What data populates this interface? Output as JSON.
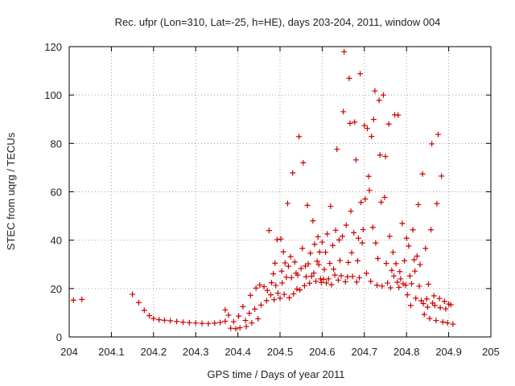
{
  "chart_data": {
    "type": "scatter",
    "title": "Rec. ufpr (Lon=310, Lat=-25, h=HE), days 203-204, 2011, window 004",
    "xlabel": "GPS time / Days of year 2011",
    "ylabel": "STEC from uqrg / TECUs",
    "xlim": [
      204,
      205
    ],
    "ylim": [
      0,
      120
    ],
    "xticks": [
      204,
      204.1,
      204.2,
      204.3,
      204.4,
      204.5,
      204.6,
      204.7,
      204.8,
      204.9,
      205
    ],
    "xtick_labels": [
      "204",
      "204.1",
      "204.2",
      "204.3",
      "204.4",
      "204.5",
      "204.6",
      "204.7",
      "204.8",
      "204.9",
      "205"
    ],
    "yticks": [
      0,
      20,
      40,
      60,
      80,
      100,
      120
    ],
    "ytick_labels": [
      "0",
      "20",
      "40",
      "60",
      "80",
      "100",
      "120"
    ],
    "grid": true,
    "marker": "+",
    "color": "#cc0000",
    "series": [
      {
        "name": "STEC",
        "points": [
          [
            204.01,
            15.2
          ],
          [
            204.03,
            15.5
          ],
          [
            204.15,
            17.6
          ],
          [
            204.165,
            14.2
          ],
          [
            204.178,
            11.0
          ],
          [
            204.19,
            8.8
          ],
          [
            204.2,
            7.6
          ],
          [
            204.213,
            7.1
          ],
          [
            204.226,
            6.9
          ],
          [
            204.24,
            6.7
          ],
          [
            204.255,
            6.4
          ],
          [
            204.27,
            6.1
          ],
          [
            204.285,
            5.9
          ],
          [
            204.3,
            5.8
          ],
          [
            204.315,
            5.6
          ],
          [
            204.33,
            5.5
          ],
          [
            204.345,
            5.7
          ],
          [
            204.358,
            6.0
          ],
          [
            204.37,
            6.5
          ],
          [
            204.37,
            11.2
          ],
          [
            204.378,
            9.0
          ],
          [
            204.383,
            3.6
          ],
          [
            204.39,
            6.3
          ],
          [
            204.395,
            3.4
          ],
          [
            204.402,
            8.6
          ],
          [
            204.405,
            3.8
          ],
          [
            204.412,
            12.5
          ],
          [
            204.418,
            6.8
          ],
          [
            204.42,
            4.3
          ],
          [
            204.427,
            9.8
          ],
          [
            204.43,
            17.2
          ],
          [
            204.433,
            5.8
          ],
          [
            204.44,
            11.5
          ],
          [
            204.443,
            20.2
          ],
          [
            204.448,
            7.5
          ],
          [
            204.452,
            21.5
          ],
          [
            204.455,
            13.2
          ],
          [
            204.462,
            20.8
          ],
          [
            204.468,
            15.0
          ],
          [
            204.47,
            19.2
          ],
          [
            204.474,
            44.0
          ],
          [
            204.478,
            17.4
          ],
          [
            204.48,
            22.4
          ],
          [
            204.484,
            26.1
          ],
          [
            204.486,
            15.4
          ],
          [
            204.488,
            30.5
          ],
          [
            204.49,
            21.3
          ],
          [
            204.493,
            40.2
          ],
          [
            204.495,
            18.1
          ],
          [
            204.5,
            16.0
          ],
          [
            204.502,
            40.5
          ],
          [
            204.504,
            27.2
          ],
          [
            204.505,
            22.3
          ],
          [
            204.508,
            35.2
          ],
          [
            204.51,
            17.6
          ],
          [
            204.512,
            30.6
          ],
          [
            204.515,
            24.7
          ],
          [
            204.518,
            55.2
          ],
          [
            204.52,
            29.2
          ],
          [
            204.522,
            16.2
          ],
          [
            204.525,
            33.2
          ],
          [
            204.527,
            24.5
          ],
          [
            204.53,
            67.8
          ],
          [
            204.532,
            17.8
          ],
          [
            204.535,
            31.0
          ],
          [
            204.538,
            26.4
          ],
          [
            204.54,
            19.8
          ],
          [
            204.542,
            25.6
          ],
          [
            204.545,
            82.8
          ],
          [
            204.547,
            19.4
          ],
          [
            204.55,
            28.3
          ],
          [
            204.553,
            36.6
          ],
          [
            204.555,
            72.0
          ],
          [
            204.558,
            21.2
          ],
          [
            204.56,
            29.3
          ],
          [
            204.562,
            24.9
          ],
          [
            204.565,
            54.4
          ],
          [
            204.567,
            30.2
          ],
          [
            204.57,
            22.2
          ],
          [
            204.572,
            34.6
          ],
          [
            204.575,
            25.1
          ],
          [
            204.578,
            48.0
          ],
          [
            204.58,
            26.4
          ],
          [
            204.582,
            38.3
          ],
          [
            204.585,
            23.0
          ],
          [
            204.588,
            31.3
          ],
          [
            204.59,
            41.4
          ],
          [
            204.592,
            29.9
          ],
          [
            204.594,
            35.1
          ],
          [
            204.596,
            24.0
          ],
          [
            204.598,
            22.5
          ],
          [
            204.6,
            39.2
          ],
          [
            204.603,
            23.8
          ],
          [
            204.605,
            27.9
          ],
          [
            204.608,
            35.0
          ],
          [
            204.61,
            22.3
          ],
          [
            204.612,
            42.6
          ],
          [
            204.615,
            24.0
          ],
          [
            204.618,
            30.4
          ],
          [
            204.62,
            54.0
          ],
          [
            204.622,
            21.6
          ],
          [
            204.625,
            37.8
          ],
          [
            204.627,
            28.0
          ],
          [
            204.63,
            25.6
          ],
          [
            204.632,
            44.1
          ],
          [
            204.635,
            77.6
          ],
          [
            204.638,
            23.5
          ],
          [
            204.64,
            40.1
          ],
          [
            204.642,
            31.6
          ],
          [
            204.645,
            25.3
          ],
          [
            204.648,
            41.6
          ],
          [
            204.65,
            93.1
          ],
          [
            204.652,
            117.9
          ],
          [
            204.655,
            22.8
          ],
          [
            204.657,
            46.2
          ],
          [
            204.66,
            24.9
          ],
          [
            204.662,
            30.8
          ],
          [
            204.664,
            106.9
          ],
          [
            204.666,
            88.3
          ],
          [
            204.668,
            52.0
          ],
          [
            204.67,
            34.8
          ],
          [
            204.672,
            25.0
          ],
          [
            204.675,
            43.1
          ],
          [
            204.677,
            88.8
          ],
          [
            204.68,
            73.2
          ],
          [
            204.682,
            22.7
          ],
          [
            204.684,
            31.5
          ],
          [
            204.686,
            40.8
          ],
          [
            204.688,
            24.5
          ],
          [
            204.69,
            108.8
          ],
          [
            204.692,
            55.6
          ],
          [
            204.695,
            38.9
          ],
          [
            204.697,
            44.4
          ],
          [
            204.7,
            87.4
          ],
          [
            204.702,
            57.0
          ],
          [
            204.705,
            26.3
          ],
          [
            204.707,
            86.2
          ],
          [
            204.71,
            66.4
          ],
          [
            204.712,
            60.6
          ],
          [
            204.715,
            23.0
          ],
          [
            204.717,
            82.9
          ],
          [
            204.72,
            45.3
          ],
          [
            204.722,
            89.9
          ],
          [
            204.725,
            101.7
          ],
          [
            204.727,
            38.8
          ],
          [
            204.73,
            21.4
          ],
          [
            204.732,
            32.4
          ],
          [
            204.735,
            97.8
          ],
          [
            204.737,
            75.2
          ],
          [
            204.74,
            55.7
          ],
          [
            204.742,
            21.0
          ],
          [
            204.745,
            100.0
          ],
          [
            204.748,
            57.7
          ],
          [
            204.75,
            74.6
          ],
          [
            204.752,
            30.4
          ],
          [
            204.755,
            22.3
          ],
          [
            204.758,
            88.0
          ],
          [
            204.76,
            41.6
          ],
          [
            204.762,
            20.3
          ],
          [
            204.765,
            27.5
          ],
          [
            204.768,
            35.0
          ],
          [
            204.77,
            25.2
          ],
          [
            204.772,
            91.8
          ],
          [
            204.775,
            30.3
          ],
          [
            204.778,
            22.6
          ],
          [
            204.78,
            91.7
          ],
          [
            204.782,
            20.5
          ],
          [
            204.784,
            27.0
          ],
          [
            204.786,
            24.0
          ],
          [
            204.79,
            46.9
          ],
          [
            204.792,
            22.0
          ],
          [
            204.795,
            31.5
          ],
          [
            204.798,
            21.4
          ],
          [
            204.8,
            40.8
          ],
          [
            204.802,
            17.4
          ],
          [
            204.805,
            37.6
          ],
          [
            204.808,
            25.2
          ],
          [
            204.81,
            13.0
          ],
          [
            204.812,
            22.0
          ],
          [
            204.815,
            44.3
          ],
          [
            204.818,
            31.9
          ],
          [
            204.82,
            27.2
          ],
          [
            204.822,
            16.0
          ],
          [
            204.825,
            33.4
          ],
          [
            204.828,
            54.7
          ],
          [
            204.83,
            21.0
          ],
          [
            204.832,
            29.9
          ],
          [
            204.835,
            15.0
          ],
          [
            204.838,
            67.4
          ],
          [
            204.84,
            13.8
          ],
          [
            204.842,
            9.3
          ],
          [
            204.845,
            36.6
          ],
          [
            204.848,
            15.7
          ],
          [
            204.85,
            12.3
          ],
          [
            204.852,
            21.8
          ],
          [
            204.855,
            7.6
          ],
          [
            204.858,
            44.3
          ],
          [
            204.86,
            79.8
          ],
          [
            204.862,
            14.0
          ],
          [
            204.865,
            17.0
          ],
          [
            204.867,
            13.0
          ],
          [
            204.87,
            6.8
          ],
          [
            204.872,
            55.1
          ],
          [
            204.875,
            83.7
          ],
          [
            204.878,
            15.9
          ],
          [
            204.88,
            12.1
          ],
          [
            204.883,
            66.5
          ],
          [
            204.886,
            6.2
          ],
          [
            204.89,
            14.7
          ],
          [
            204.893,
            11.6
          ],
          [
            204.897,
            5.8
          ],
          [
            204.9,
            13.6
          ],
          [
            204.905,
            13.3
          ],
          [
            204.91,
            5.3
          ]
        ]
      }
    ]
  }
}
